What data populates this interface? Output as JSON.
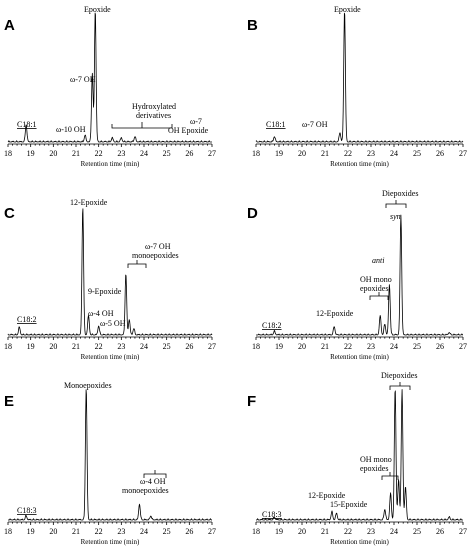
{
  "chart_data": [
    {
      "panel": "A",
      "type": "line",
      "x_ticks": [
        18,
        19,
        20,
        21,
        22,
        23,
        24,
        25,
        26,
        27
      ],
      "xlim": [
        18,
        27
      ],
      "xlabel": "Retention time (min)",
      "peaks": [
        {
          "rt": 18.8,
          "h": 0.13
        },
        {
          "rt": 21.4,
          "h": 0.05
        },
        {
          "rt": 21.72,
          "h": 0.52
        },
        {
          "rt": 21.85,
          "h": 1.0
        },
        {
          "rt": 22.6,
          "h": 0.03
        },
        {
          "rt": 23.0,
          "h": 0.03
        },
        {
          "rt": 23.6,
          "h": 0.04
        }
      ],
      "annotations": [
        {
          "text": "Epoxide"
        },
        {
          "text": "ω-7 OH"
        },
        {
          "text": "ω-10 OH"
        },
        {
          "text": "Hydroxylated"
        },
        {
          "text": "derivatives"
        },
        {
          "text": "ω-7"
        },
        {
          "text": "OH Epoxide"
        },
        {
          "text": "C18:1"
        }
      ]
    },
    {
      "panel": "B",
      "type": "line",
      "x_ticks": [
        18,
        19,
        20,
        21,
        22,
        23,
        24,
        25,
        26,
        27
      ],
      "xlim": [
        18,
        27
      ],
      "xlabel": "Retention time (min)",
      "peaks": [
        {
          "rt": 18.8,
          "h": 0.04
        },
        {
          "rt": 21.65,
          "h": 0.07
        },
        {
          "rt": 21.85,
          "h": 1.0
        }
      ],
      "annotations": [
        {
          "text": "Epoxide"
        },
        {
          "text": "ω-7 OH"
        },
        {
          "text": "C18:1"
        }
      ]
    },
    {
      "panel": "C",
      "type": "line",
      "x_ticks": [
        18,
        19,
        20,
        21,
        22,
        23,
        24,
        25,
        26,
        27
      ],
      "xlim": [
        18,
        27
      ],
      "xlabel": "Retention time (min)",
      "peaks": [
        {
          "rt": 18.5,
          "h": 0.06
        },
        {
          "rt": 21.3,
          "h": 1.0
        },
        {
          "rt": 21.55,
          "h": 0.15
        },
        {
          "rt": 22.0,
          "h": 0.07
        },
        {
          "rt": 23.2,
          "h": 0.48
        },
        {
          "rt": 23.35,
          "h": 0.12
        },
        {
          "rt": 23.55,
          "h": 0.05
        }
      ],
      "annotations": [
        {
          "text": "12-Epoxide"
        },
        {
          "text": "9-Epoxide"
        },
        {
          "text": "ω-4 OH"
        },
        {
          "text": "ω-5 OH"
        },
        {
          "text": "ω-7 OH"
        },
        {
          "text": "monoepoxides"
        },
        {
          "text": "C18:2"
        }
      ]
    },
    {
      "panel": "D",
      "type": "line",
      "x_ticks": [
        18,
        19,
        20,
        21,
        22,
        23,
        24,
        25,
        26,
        27
      ],
      "xlim": [
        18,
        27
      ],
      "xlabel": "Retention time (min)",
      "peaks": [
        {
          "rt": 18.8,
          "h": 0.03
        },
        {
          "rt": 21.4,
          "h": 0.07
        },
        {
          "rt": 23.4,
          "h": 0.16
        },
        {
          "rt": 23.6,
          "h": 0.09
        },
        {
          "rt": 23.8,
          "h": 0.42
        },
        {
          "rt": 24.3,
          "h": 1.0
        },
        {
          "rt": 26.4,
          "h": 0.02
        }
      ],
      "annotations": [
        {
          "text": "Diepoxides"
        },
        {
          "text": "syn"
        },
        {
          "text": "anti"
        },
        {
          "text": "OH mono"
        },
        {
          "text": "epoxides"
        },
        {
          "text": "12-Epoxide"
        },
        {
          "text": "C18:2"
        }
      ]
    },
    {
      "panel": "E",
      "type": "line",
      "x_ticks": [
        18,
        19,
        20,
        21,
        22,
        23,
        24,
        25,
        26,
        27
      ],
      "xlim": [
        18,
        27
      ],
      "xlabel": "Retention time (min)",
      "peaks": [
        {
          "rt": 18.8,
          "h": 0.03
        },
        {
          "rt": 21.45,
          "h": 1.0
        },
        {
          "rt": 23.8,
          "h": 0.12
        },
        {
          "rt": 24.3,
          "h": 0.03
        }
      ],
      "annotations": [
        {
          "text": "Monoepoxides"
        },
        {
          "text": "ω-4 OH"
        },
        {
          "text": "monoepoxides"
        },
        {
          "text": "C18:3"
        }
      ]
    },
    {
      "panel": "F",
      "type": "line",
      "x_ticks": [
        18,
        19,
        20,
        21,
        22,
        23,
        24,
        25,
        26,
        27
      ],
      "xlim": [
        18,
        27
      ],
      "xlabel": "Retention time (min)",
      "peaks": [
        {
          "rt": 18.8,
          "h": 0.02
        },
        {
          "rt": 21.3,
          "h": 0.06
        },
        {
          "rt": 21.5,
          "h": 0.05
        },
        {
          "rt": 23.6,
          "h": 0.08
        },
        {
          "rt": 23.85,
          "h": 0.2
        },
        {
          "rt": 24.05,
          "h": 1.0
        },
        {
          "rt": 24.2,
          "h": 0.3
        },
        {
          "rt": 24.35,
          "h": 0.98
        },
        {
          "rt": 24.5,
          "h": 0.25
        },
        {
          "rt": 26.4,
          "h": 0.02
        }
      ],
      "annotations": [
        {
          "text": "Diepoxides"
        },
        {
          "text": "OH mono"
        },
        {
          "text": "epoxides"
        },
        {
          "text": "12-Epoxide"
        },
        {
          "text": "15-Epoxide"
        },
        {
          "text": "C18:3"
        }
      ]
    }
  ]
}
